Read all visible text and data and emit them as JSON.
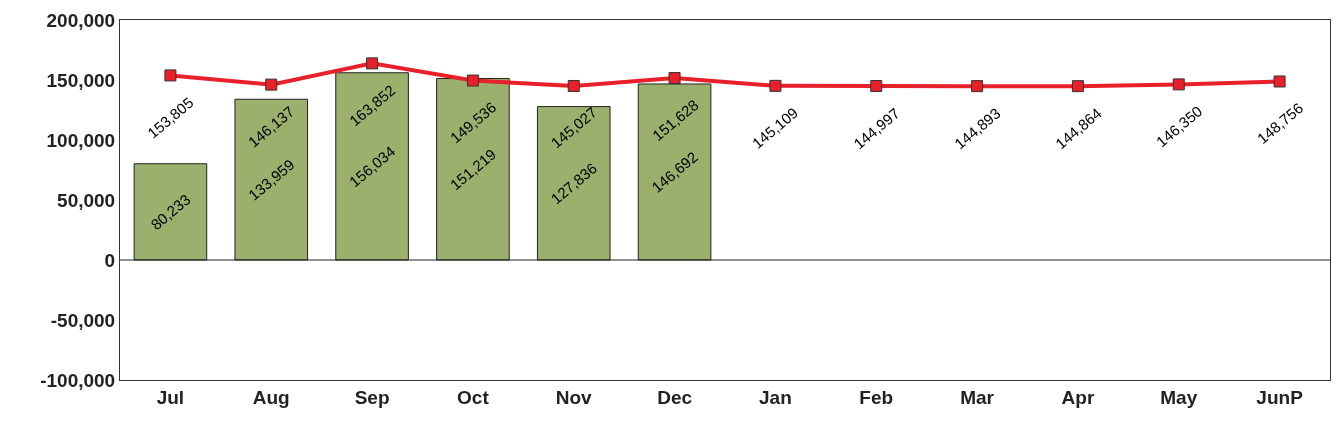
{
  "chart_data": {
    "type": "bar",
    "categories": [
      "Jul",
      "Aug",
      "Sep",
      "Oct",
      "Nov",
      "Dec",
      "Jan",
      "Feb",
      "Mar",
      "Apr",
      "May",
      "JunP"
    ],
    "series": [
      {
        "color": "#9bb06c",
        "values": [
          80233,
          133959,
          156034,
          151219,
          127836,
          146692,
          null,
          null,
          null,
          null,
          null,
          null
        ],
        "value_labels": [
          "80,233",
          "133,959",
          "156,034",
          "151,219",
          "127,836",
          "146,692",
          null,
          null,
          null,
          null,
          null,
          null
        ]
      },
      {
        "type": "line",
        "color": "#e8202a",
        "marker": "square",
        "values": [
          153805,
          146137,
          163852,
          149536,
          145027,
          151628,
          145109,
          144997,
          144893,
          144864,
          146350,
          148756
        ],
        "value_labels": [
          "153,805",
          "146,137",
          "163,852",
          "149,536",
          "145,027",
          "151,628",
          "145,109",
          "144,997",
          "144,893",
          "144,864",
          "146,350",
          "148,756"
        ]
      }
    ],
    "ylim": [
      -100000,
      200000
    ],
    "yticks": [
      {
        "value": -100000,
        "label": "-100,000"
      },
      {
        "value": -50000,
        "label": "-50,000"
      },
      {
        "value": 0,
        "label": "0"
      },
      {
        "value": 50000,
        "label": "50,000"
      },
      {
        "value": 100000,
        "label": "100,000"
      },
      {
        "value": 150000,
        "label": "150,000"
      },
      {
        "value": 200000,
        "label": "200,000"
      }
    ],
    "ref_lines": [
      {
        "axis": "y",
        "value": 0,
        "color": "#222222"
      }
    ],
    "legend": false
  }
}
